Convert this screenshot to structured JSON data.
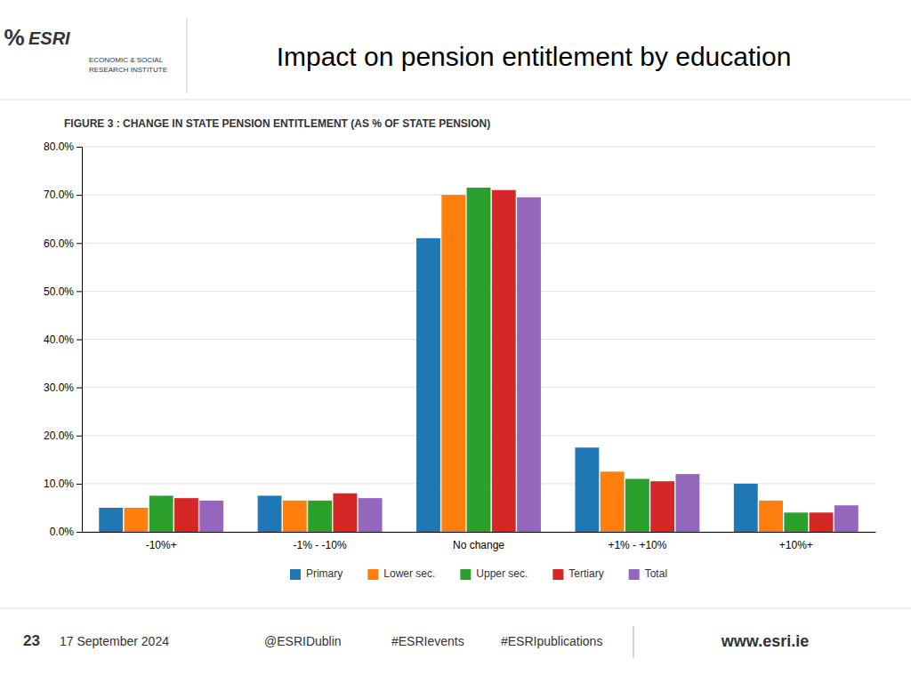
{
  "chart_data": {
    "type": "bar",
    "title": "Impact on pension entitlement by education",
    "subtitle": "FIGURE 3 : CHANGE IN STATE PENSION ENTITLEMENT (AS % OF STATE PENSION)",
    "categories": [
      "-10%+",
      "-1% - -10%",
      "No change",
      "+1% - +10%",
      "+10%+"
    ],
    "series": [
      {
        "name": "Primary",
        "values": [
          5.0,
          7.5,
          61.0,
          17.5,
          10.0
        ]
      },
      {
        "name": "Lower sec.",
        "values": [
          5.0,
          6.5,
          70.0,
          12.5,
          6.5
        ]
      },
      {
        "name": "Upper sec.",
        "values": [
          7.5,
          6.5,
          71.5,
          11.0,
          4.0
        ]
      },
      {
        "name": "Tertiary",
        "values": [
          7.0,
          8.0,
          71.0,
          10.5,
          4.0
        ]
      },
      {
        "name": "Total",
        "values": [
          6.5,
          7.0,
          69.5,
          12.0,
          5.5
        ]
      }
    ],
    "ylim": [
      0,
      80
    ],
    "yticks": [
      {
        "value": 0,
        "label": "0.0%"
      },
      {
        "value": 10,
        "label": "10.0%"
      },
      {
        "value": 20,
        "label": "20.0%"
      },
      {
        "value": 30,
        "label": "30.0%"
      },
      {
        "value": 40,
        "label": "40.0%"
      },
      {
        "value": 50,
        "label": "50.0%"
      },
      {
        "value": 60,
        "label": "60.0%"
      },
      {
        "value": 70,
        "label": "70.0%"
      },
      {
        "value": 80,
        "label": "80.0%"
      }
    ],
    "grid": true,
    "legend": "bottom"
  },
  "page": {
    "logo_symbol": "%",
    "logo": "ESRI",
    "logo_subtitle": [
      "ECONOMIC & SOCIAL",
      "RESEARCH INSTITUTE"
    ],
    "slide_number": "23",
    "date": "17 September 2024",
    "social": [
      "@ESRIDublin",
      "#ESRIevents",
      "#ESRIpublications"
    ],
    "website": "www.esri.ie"
  }
}
